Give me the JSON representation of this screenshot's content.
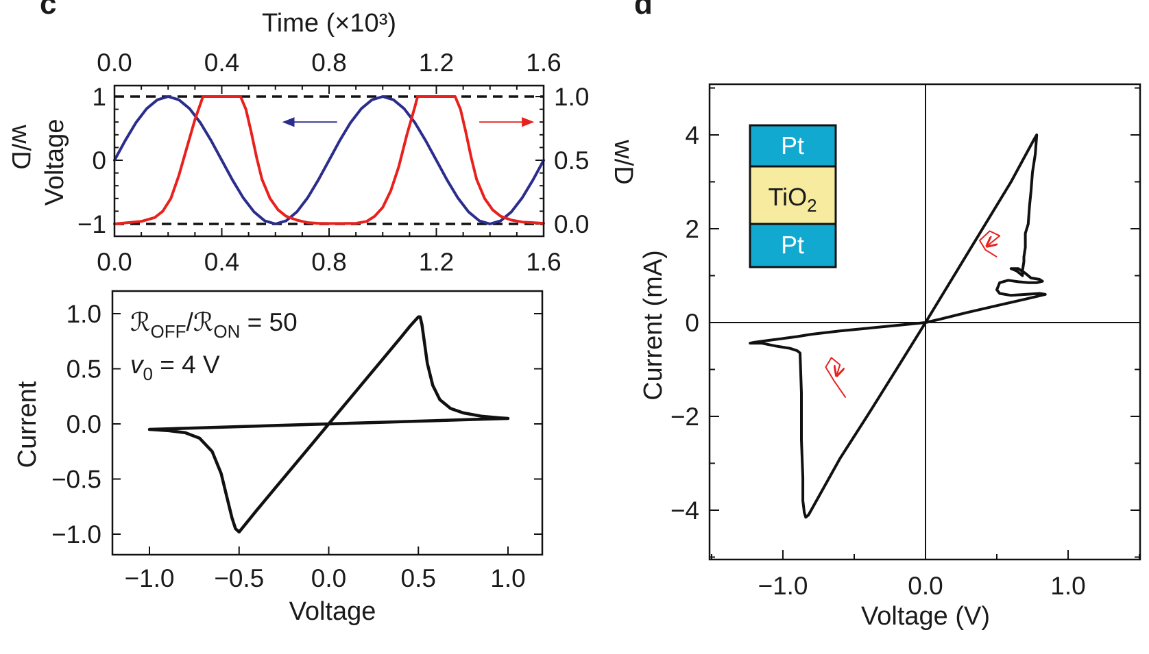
{
  "panel_c": {
    "letter": "c",
    "top": {
      "type": "line",
      "title": "Time (×10³)",
      "top_ticks": [
        "0.0",
        "0.4",
        "0.8",
        "1.2",
        "1.6"
      ],
      "bottom_ticks": [
        "0.0",
        "0.4",
        "0.8",
        "1.2",
        "1.6"
      ],
      "left_ticks": [
        "1",
        "0",
        "−1"
      ],
      "right_ticks": [
        "1.0",
        "0.5",
        "0.0"
      ],
      "ylabel_left": "Voltage",
      "ylabel_right": "w/D",
      "ylabel_left_cut": "w/D",
      "xlim": [
        0,
        1.6
      ],
      "ylim_left": [
        -1,
        1
      ],
      "ylim_right": [
        0,
        1
      ],
      "series": [
        {
          "axis": "left",
          "color": "#2b2d8c",
          "x": [
            0,
            0.04,
            0.08,
            0.12,
            0.16,
            0.2,
            0.24,
            0.28,
            0.32,
            0.36,
            0.4,
            0.44,
            0.48,
            0.52,
            0.56,
            0.6,
            0.64,
            0.68,
            0.72,
            0.76,
            0.8,
            0.84,
            0.88,
            0.92,
            0.96,
            1.0,
            1.04,
            1.08,
            1.12,
            1.16,
            1.2,
            1.24,
            1.28,
            1.32,
            1.36,
            1.4,
            1.44,
            1.48,
            1.52,
            1.56,
            1.6
          ],
          "values": [
            0,
            0.31,
            0.59,
            0.81,
            0.95,
            1.0,
            0.95,
            0.81,
            0.59,
            0.31,
            0,
            -0.31,
            -0.59,
            -0.81,
            -0.95,
            -1.0,
            -0.95,
            -0.81,
            -0.59,
            -0.31,
            0,
            0.31,
            0.59,
            0.81,
            0.95,
            1.0,
            0.95,
            0.81,
            0.59,
            0.31,
            0,
            -0.31,
            -0.59,
            -0.81,
            -0.95,
            -1.0,
            -0.95,
            -0.81,
            -0.59,
            -0.31,
            0
          ]
        },
        {
          "axis": "right",
          "color": "#e8211d",
          "x": [
            0,
            0.05,
            0.1,
            0.15,
            0.18,
            0.21,
            0.24,
            0.27,
            0.3,
            0.33,
            0.47,
            0.49,
            0.51,
            0.53,
            0.55,
            0.58,
            0.61,
            0.64,
            0.68,
            0.72,
            0.76,
            0.8,
            0.85,
            0.9,
            0.94,
            0.97,
            1.0,
            1.03,
            1.06,
            1.09,
            1.12,
            1.13,
            1.27,
            1.29,
            1.31,
            1.33,
            1.35,
            1.38,
            1.41,
            1.44,
            1.48,
            1.52,
            1.56,
            1.6
          ],
          "values": [
            0.0,
            0.01,
            0.02,
            0.05,
            0.1,
            0.2,
            0.38,
            0.6,
            0.82,
            1.0,
            1.0,
            0.9,
            0.72,
            0.52,
            0.35,
            0.2,
            0.11,
            0.06,
            0.03,
            0.01,
            0.005,
            0.003,
            0.003,
            0.005,
            0.02,
            0.06,
            0.13,
            0.26,
            0.45,
            0.7,
            0.92,
            1.0,
            1.0,
            0.9,
            0.72,
            0.52,
            0.35,
            0.2,
            0.11,
            0.06,
            0.03,
            0.015,
            0.01,
            0.005
          ]
        }
      ],
      "dashed_lines_left": [
        1,
        -1
      ],
      "arrows": [
        {
          "color": "#2b2d8c",
          "from_x": 0.83,
          "to_x": 0.63,
          "y": 0.6
        },
        {
          "color": "#e8211d",
          "from_x": 1.36,
          "to_x": 1.56,
          "y": 0.6
        }
      ]
    },
    "bottom": {
      "type": "line",
      "x_ticks": [
        "−1.0",
        "−0.5",
        "0.0",
        "0.5",
        "1.0"
      ],
      "y_ticks": [
        "1.0",
        "0.5",
        "0.0",
        "−0.5",
        "−1.0"
      ],
      "xlabel": "Voltage",
      "ylabel": "Current",
      "xlim": [
        -1.2,
        1.2
      ],
      "ylim": [
        -1.2,
        1.2
      ],
      "annotation_ratio": {
        "r_off": "ℛ",
        "sub_off": "OFF",
        "slash": "/",
        "r_on": "ℛ",
        "sub_on": "ON",
        "value": " = 50"
      },
      "annotation_v0": {
        "v": "v",
        "sub": "0",
        "value": " = 4 V"
      },
      "series": [
        {
          "color": "#111111",
          "x": [
            0,
            0.1,
            0.2,
            0.3,
            0.4,
            0.45,
            0.48,
            0.5,
            0.51,
            0.52,
            0.55,
            0.58,
            0.62,
            0.68,
            0.75,
            0.85,
            0.95,
            1.0,
            0.9,
            0.7,
            0.5,
            0.3,
            0.1,
            -0.1,
            -0.3,
            -0.5,
            -0.7,
            -0.9,
            -1.0,
            -0.9,
            -0.8,
            -0.72,
            -0.65,
            -0.6,
            -0.57,
            -0.54,
            -0.52,
            -0.5,
            -0.4,
            -0.3,
            -0.2,
            -0.1,
            0
          ],
          "values": [
            0,
            0.195,
            0.39,
            0.585,
            0.78,
            0.88,
            0.935,
            0.97,
            0.97,
            0.9,
            0.55,
            0.35,
            0.22,
            0.14,
            0.1,
            0.07,
            0.055,
            0.05,
            0.045,
            0.035,
            0.025,
            0.015,
            0.005,
            -0.005,
            -0.015,
            -0.025,
            -0.035,
            -0.045,
            -0.05,
            -0.06,
            -0.08,
            -0.13,
            -0.25,
            -0.45,
            -0.65,
            -0.85,
            -0.95,
            -0.98,
            -0.78,
            -0.585,
            -0.39,
            -0.195,
            0
          ]
        }
      ]
    }
  },
  "panel_d": {
    "letter": "d",
    "type": "line",
    "x_ticks": [
      "−1.0",
      "0.0",
      "1.0"
    ],
    "y_ticks": [
      "4",
      "2",
      "0",
      "−2",
      "−4"
    ],
    "xlabel": "Voltage (V)",
    "ylabel": "Current (mA)",
    "xlim": [
      -1.5,
      1.5
    ],
    "ylim": [
      -5,
      5
    ],
    "device_layers": [
      {
        "label": "Pt",
        "color": "#12a9d1"
      },
      {
        "label": "TiO",
        "sub": "2",
        "color": "#f6eb9f"
      },
      {
        "label": "Pt",
        "color": "#12a9d1"
      }
    ],
    "series": [
      {
        "color": "#111111",
        "x": [
          0,
          0.2,
          0.4,
          0.6,
          0.76,
          0.78,
          0.77,
          0.75,
          0.74,
          0.73,
          0.72,
          0.7,
          0.7,
          0.69,
          0.69,
          0.68,
          0.68,
          0.66,
          0.64,
          0.6,
          0.65,
          0.7,
          0.74,
          0.8,
          0.82,
          0.78,
          0.72,
          0.65,
          0.58,
          0.52,
          0.5,
          0.52,
          0.6,
          0.7,
          0.8,
          0.84,
          0.7,
          0.5,
          0.3,
          0.1,
          0,
          -0.2,
          -0.4,
          -0.6,
          -0.8,
          -0.9,
          -1.0,
          -1.1,
          -1.2,
          -1.23,
          -1.15,
          -1.05,
          -0.95,
          -0.9,
          -0.88,
          -0.87,
          -0.87,
          -0.86,
          -0.86,
          -0.85,
          -0.84,
          -0.82,
          -0.6,
          -0.4,
          -0.2,
          0
        ],
        "values": [
          0,
          1.0,
          2.0,
          3.0,
          3.9,
          4.0,
          3.6,
          3.2,
          2.8,
          2.5,
          2.1,
          1.9,
          1.6,
          1.4,
          1.3,
          1.1,
          1.0,
          1.05,
          1.1,
          1.15,
          1.15,
          1.05,
          0.95,
          0.92,
          0.88,
          0.85,
          0.85,
          0.87,
          0.9,
          0.85,
          0.7,
          0.62,
          0.58,
          0.6,
          0.62,
          0.6,
          0.5,
          0.36,
          0.22,
          0.07,
          0,
          -0.06,
          -0.12,
          -0.18,
          -0.25,
          -0.3,
          -0.34,
          -0.38,
          -0.42,
          -0.44,
          -0.44,
          -0.5,
          -0.55,
          -0.6,
          -0.65,
          -1.5,
          -2.5,
          -3.3,
          -3.8,
          -4.05,
          -4.15,
          -4.1,
          -2.9,
          -1.95,
          -0.98,
          0
        ]
      }
    ],
    "loop_arrows": [
      {
        "color": "#e8211d",
        "points": [
          [
            0.5,
            1.4
          ],
          [
            0.42,
            1.55
          ],
          [
            0.38,
            1.75
          ],
          [
            0.45,
            1.95
          ],
          [
            0.52,
            1.85
          ],
          [
            0.44,
            1.65
          ]
        ]
      },
      {
        "color": "#e8211d",
        "points": [
          [
            -0.56,
            -1.6
          ],
          [
            -0.64,
            -1.25
          ],
          [
            -0.7,
            -0.95
          ],
          [
            -0.66,
            -0.75
          ],
          [
            -0.6,
            -0.9
          ],
          [
            -0.62,
            -1.1
          ]
        ]
      }
    ]
  }
}
